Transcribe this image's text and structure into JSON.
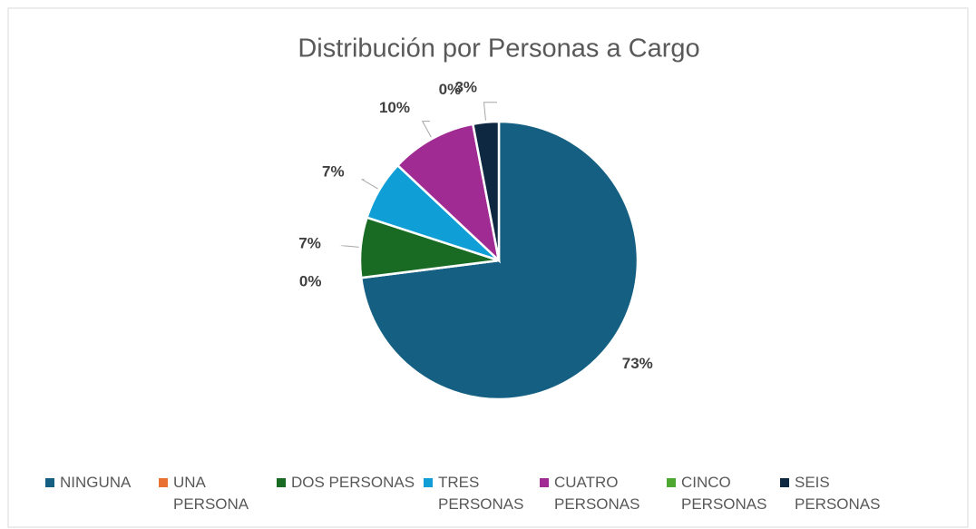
{
  "chart_data": {
    "type": "pie",
    "title": "Distribución por Personas a Cargo",
    "categories": [
      "NINGUNA",
      "UNA PERSONA",
      "DOS PERSONAS",
      "TRES PERSONAS",
      "CUATRO PERSONAS",
      "CINCO PERSONAS",
      "SEIS PERSONAS"
    ],
    "values": [
      73,
      0,
      7,
      7,
      10,
      0,
      3
    ],
    "value_labels": [
      "73%",
      "0%",
      "7%",
      "7%",
      "10%",
      "0%",
      "3%"
    ],
    "colors": [
      "#156082",
      "#e97132",
      "#196b24",
      "#0f9ed5",
      "#a02b93",
      "#4ea72e",
      "#0e2841"
    ],
    "legend": "bottom"
  }
}
